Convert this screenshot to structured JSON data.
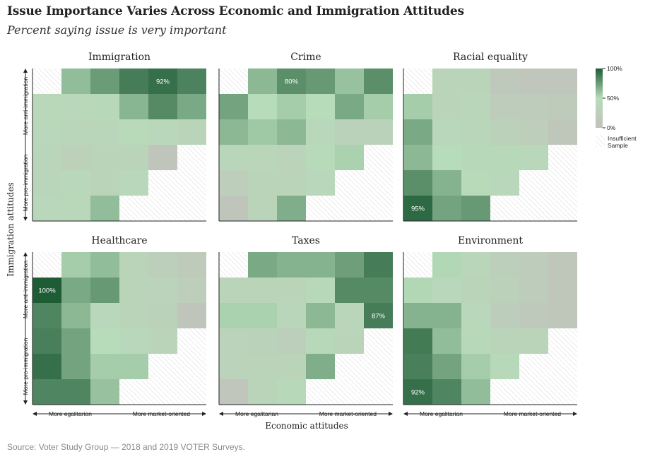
{
  "title": "Issue Importance Varies Across Economic and Immigration Attitudes",
  "subtitle": "Percent saying issue is very important",
  "source": "Source: Voter Study Group — 2018 and 2019 VOTER Surveys.",
  "colors": {
    "low": "#c2c1bc",
    "mid": "#b7dcb9",
    "high": "#1e5c36",
    "hatch": "#d8d8d8",
    "axis": "#222222"
  },
  "chart_data": {
    "type": "heatmap",
    "xlabel": "Economic attitudes",
    "ylabel": "Immigration attitudes",
    "x_axis_ends": [
      "More egalitarian",
      "More market-oriented"
    ],
    "y_axis_ends": [
      "More anti-immigration",
      "More pro-immigration"
    ],
    "legend": {
      "ticks": [
        "100%",
        "50%",
        "0%"
      ],
      "insufficient_label": [
        "Insufficient",
        "Sample"
      ]
    },
    "value_range": [
      0,
      100
    ],
    "grid_note": "Rows listed top (most anti-immigration) to bottom (most pro-immigration); columns left (most egalitarian) to right (most market-oriented). null = insufficient sample.",
    "panels": [
      {
        "name": "Immigration",
        "labeled_value": "92%",
        "labeled_cell": [
          0,
          4
        ],
        "values": [
          [
            null,
            62,
            75,
            87,
            92,
            85
          ],
          [
            42,
            40,
            45,
            65,
            82,
            70
          ],
          [
            40,
            38,
            38,
            46,
            40,
            36
          ],
          [
            38,
            28,
            36,
            36,
            8,
            null
          ],
          [
            38,
            40,
            36,
            40,
            null,
            null
          ],
          [
            40,
            42,
            62,
            null,
            null,
            null
          ]
        ]
      },
      {
        "name": "Crime",
        "labeled_value": "80%",
        "labeled_cell": [
          0,
          2
        ],
        "values": [
          [
            null,
            64,
            80,
            76,
            60,
            80
          ],
          [
            72,
            50,
            56,
            50,
            70,
            56
          ],
          [
            64,
            58,
            64,
            40,
            32,
            32
          ],
          [
            38,
            38,
            34,
            48,
            54,
            null
          ],
          [
            24,
            36,
            36,
            40,
            null,
            null
          ],
          [
            8,
            36,
            68,
            null,
            null,
            null
          ]
        ]
      },
      {
        "name": "Racial equality",
        "labeled_value": "95%",
        "labeled_cell": [
          5,
          0
        ],
        "values": [
          [
            null,
            36,
            36,
            14,
            10,
            10
          ],
          [
            56,
            36,
            38,
            20,
            20,
            18
          ],
          [
            70,
            40,
            38,
            30,
            24,
            12
          ],
          [
            64,
            50,
            44,
            44,
            40,
            null
          ],
          [
            80,
            66,
            46,
            40,
            null,
            null
          ],
          [
            95,
            72,
            76,
            null,
            null,
            null
          ]
        ]
      },
      {
        "name": "Healthcare",
        "labeled_value": "100%",
        "labeled_cell": [
          1,
          0
        ],
        "values": [
          [
            null,
            56,
            62,
            36,
            26,
            18
          ],
          [
            100,
            70,
            76,
            36,
            34,
            24
          ],
          [
            84,
            64,
            40,
            36,
            32,
            8
          ],
          [
            86,
            72,
            50,
            40,
            36,
            null
          ],
          [
            92,
            72,
            56,
            56,
            null,
            null
          ],
          [
            84,
            84,
            60,
            null,
            null,
            null
          ]
        ]
      },
      {
        "name": "Taxes",
        "labeled_value": "87%",
        "labeled_cell": [
          2,
          5
        ],
        "values": [
          [
            null,
            70,
            66,
            66,
            74,
            87
          ],
          [
            36,
            36,
            36,
            44,
            82,
            82
          ],
          [
            54,
            54,
            38,
            64,
            38,
            87
          ],
          [
            34,
            32,
            26,
            44,
            36,
            null
          ],
          [
            34,
            36,
            36,
            68,
            null,
            null
          ],
          [
            10,
            36,
            44,
            null,
            null,
            null
          ]
        ]
      },
      {
        "name": "Environment",
        "labeled_value": "92%",
        "labeled_cell": [
          5,
          0
        ],
        "values": [
          [
            null,
            52,
            38,
            26,
            20,
            12
          ],
          [
            52,
            40,
            36,
            30,
            20,
            12
          ],
          [
            66,
            66,
            40,
            22,
            14,
            12
          ],
          [
            88,
            62,
            44,
            36,
            36,
            null
          ],
          [
            86,
            72,
            56,
            44,
            null,
            null
          ],
          [
            92,
            84,
            62,
            null,
            null,
            null
          ]
        ]
      }
    ]
  }
}
